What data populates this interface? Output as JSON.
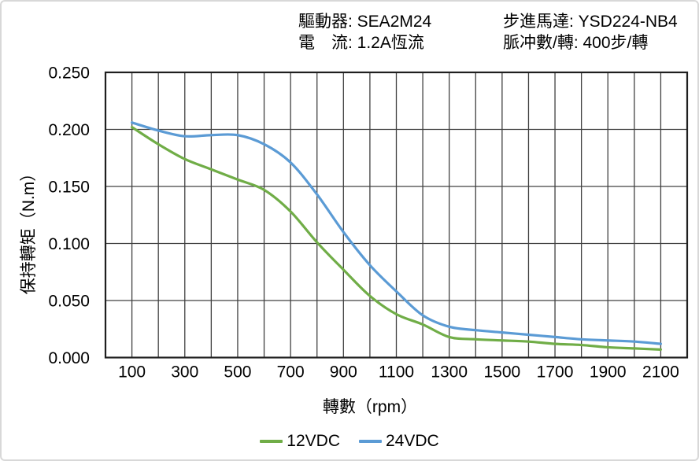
{
  "header": {
    "rows": [
      {
        "left": "驅動器: SEA2M24",
        "right": "步進馬達: YSD224-NB4"
      },
      {
        "left": "電　流: 1.2A恆流",
        "right": "脈冲數/轉: 400步/轉"
      }
    ]
  },
  "chart_data": {
    "type": "line",
    "title": "",
    "xlabel": "轉數（rpm）",
    "ylabel": "保持轉矩（N.m）",
    "x": [
      100,
      200,
      300,
      400,
      500,
      600,
      700,
      800,
      900,
      1000,
      1100,
      1200,
      1300,
      1400,
      1500,
      1600,
      1700,
      1800,
      1900,
      2000,
      2100
    ],
    "series": [
      {
        "name": "12VDC",
        "color": "#70AD47",
        "values": [
          0.202,
          0.187,
          0.174,
          0.165,
          0.156,
          0.147,
          0.128,
          0.101,
          0.077,
          0.054,
          0.038,
          0.029,
          0.018,
          0.016,
          0.015,
          0.014,
          0.012,
          0.011,
          0.009,
          0.008,
          0.007
        ]
      },
      {
        "name": "24VDC",
        "color": "#5B9BD5",
        "values": [
          0.206,
          0.199,
          0.194,
          0.195,
          0.195,
          0.187,
          0.171,
          0.143,
          0.11,
          0.081,
          0.058,
          0.037,
          0.027,
          0.024,
          0.022,
          0.02,
          0.018,
          0.016,
          0.015,
          0.014,
          0.012
        ]
      }
    ],
    "xlim": [
      0,
      2200
    ],
    "ylim": [
      0,
      0.25
    ],
    "x_grid_step": 100,
    "y_grid_step": 0.05,
    "x_tick_labels": [
      "100",
      "300",
      "500",
      "700",
      "900",
      "1100",
      "1300",
      "1500",
      "1700",
      "1900",
      "2100"
    ],
    "y_tick_labels": [
      "0.000",
      "0.050",
      "0.100",
      "0.150",
      "0.200",
      "0.250"
    ],
    "grid": true,
    "grid_color": "#404040",
    "axis_color": "#1f1f1f",
    "legend_position": "bottom"
  }
}
